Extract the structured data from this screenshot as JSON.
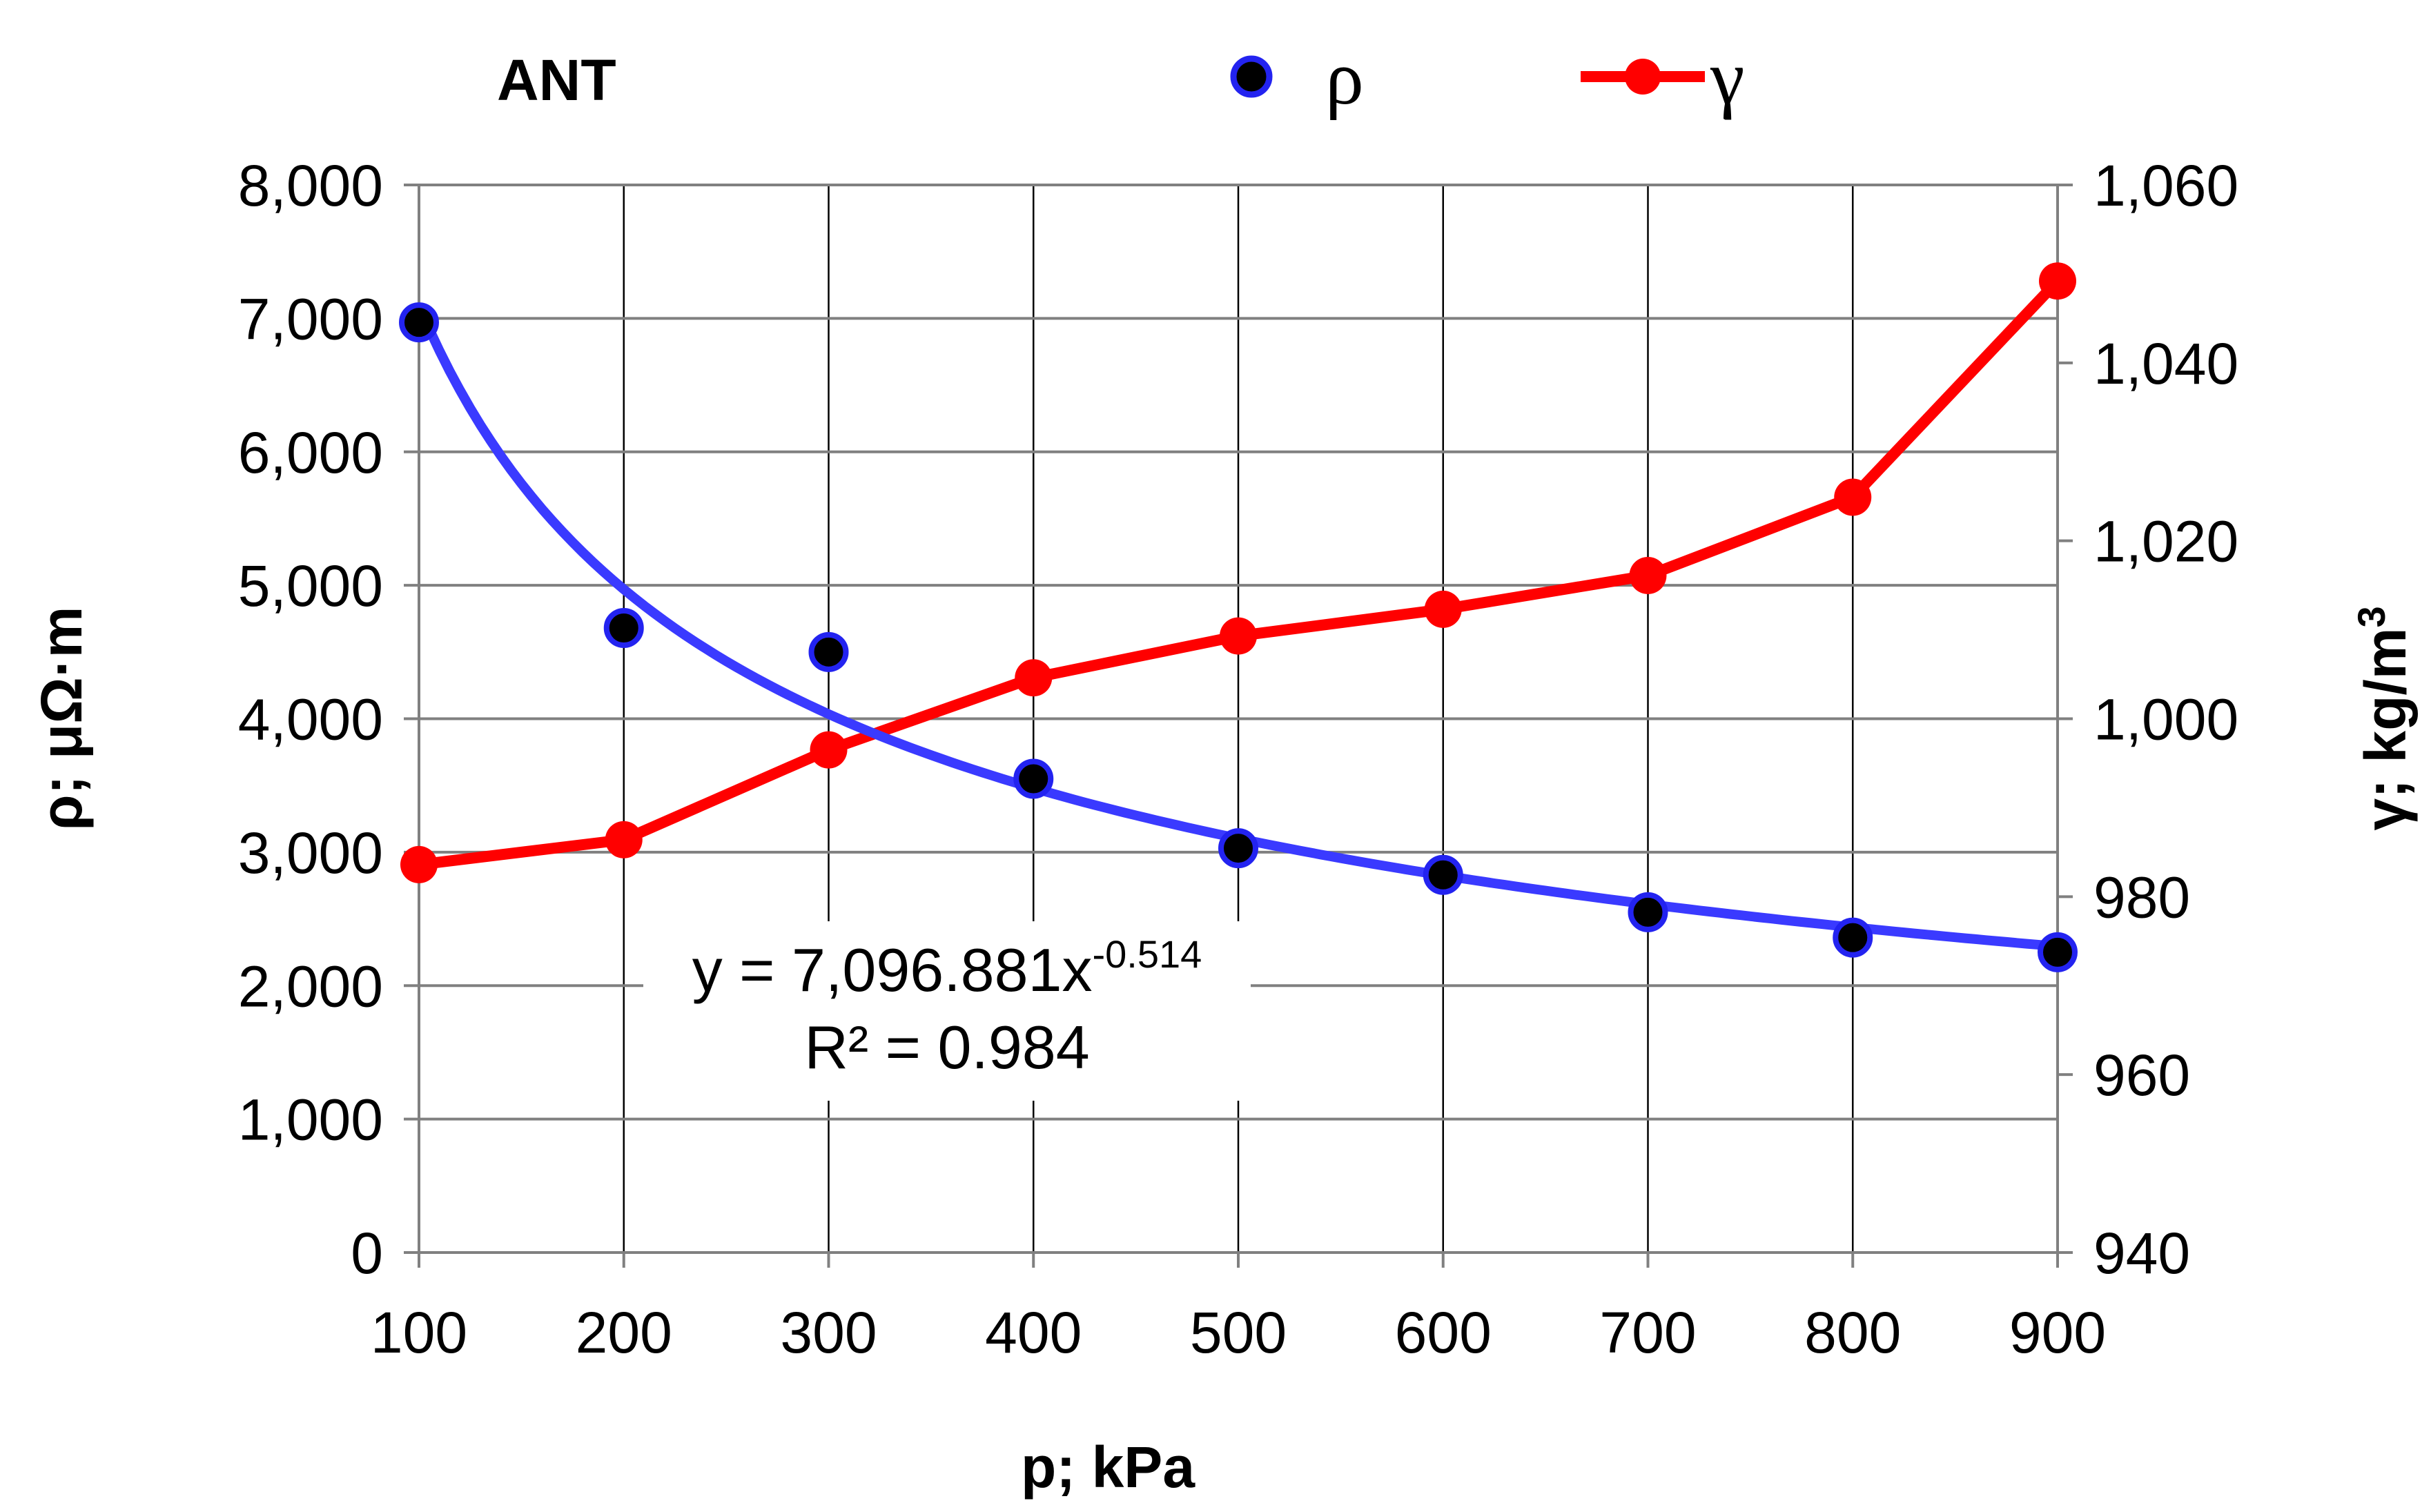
{
  "chart_data": {
    "type": "line",
    "title": "ANT",
    "xlabel": "p;  kPa",
    "ylabel_left": "ρ;  μΩ·m",
    "ylabel_right_prefix": "γ; kg/m",
    "ylabel_right_sup": "3",
    "x": [
      100,
      200,
      300,
      400,
      500,
      600,
      700,
      800,
      900
    ],
    "x_ticks": [
      "100",
      "200",
      "300",
      "400",
      "500",
      "600",
      "700",
      "800",
      "900"
    ],
    "xlim": [
      100,
      900
    ],
    "y_left_lim": [
      0,
      8000
    ],
    "y_left_ticks": [
      "0",
      "1,000",
      "2,000",
      "3,000",
      "4,000",
      "5,000",
      "6,000",
      "7,000",
      "8,000"
    ],
    "y_right_lim": [
      940,
      1060
    ],
    "y_right_ticks": [
      "940",
      "960",
      "980",
      "1,000",
      "1,020",
      "1,040",
      "1,060"
    ],
    "grid": true,
    "legend_position": "top",
    "series": [
      {
        "name": "ρ",
        "axis": "left",
        "style": "markers",
        "color": "#000000",
        "edge_color": "#2323f0",
        "values": [
          6970,
          4680,
          4500,
          3550,
          3030,
          2830,
          2550,
          2360,
          2250
        ]
      },
      {
        "name": "γ",
        "axis": "right",
        "style": "line+markers",
        "color": "#ff0000",
        "values": [
          983.6,
          986.4,
          996.5,
          1004.6,
          1009.3,
          1012.3,
          1016.1,
          1024.9,
          1049.2
        ]
      }
    ],
    "trendline": {
      "series": "ρ",
      "type": "power",
      "color": "#3a3aff",
      "coefficient": 7096.881,
      "exponent": -0.514,
      "x_scale": 100,
      "equation_prefix": "y = 7,096.881x",
      "equation_exponent": "-0.514",
      "r_squared_label": "R² = 0.984"
    }
  }
}
